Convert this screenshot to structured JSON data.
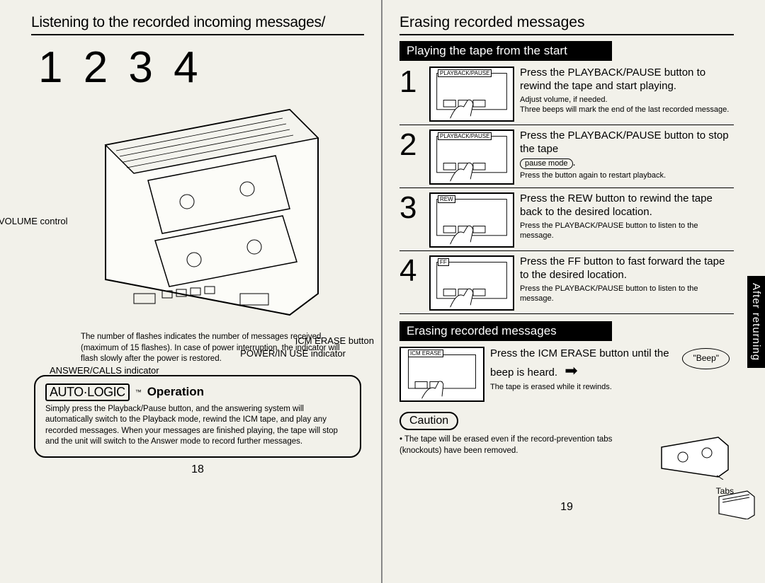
{
  "left": {
    "title": "Listening to the recorded incoming messages/",
    "bigNumbers": "1 2 3 4",
    "callouts": {
      "volume": "VOLUME control",
      "icmErase": "ICM ERASE button",
      "powerInUse": "POWER/IN USE indicator",
      "answerCalls": "ANSWER/CALLS indicator"
    },
    "answerDesc": "The number of flashes indicates the number of messages received (maximum of 15 flashes).\nIn case of power interruption, the indicator will flash slowly after the power is restored.",
    "autologic": {
      "logo": "AUTO·LOGIC",
      "tm": "™",
      "op": "Operation",
      "body": "Simply press the Playback/Pause button, and the answering system will automatically switch to the Playback mode, rewind the ICM tape, and play any recorded messages. When your messages are finished playing, the tape will stop and the unit will switch to the Answer mode to record further messages."
    },
    "pageNum": "18"
  },
  "right": {
    "title": "Erasing recorded messages",
    "section1": "Playing the tape from the start",
    "steps": [
      {
        "n": "1",
        "label": "PLAYBACK/PAUSE",
        "main": "Press the PLAYBACK/PAUSE button to rewind the tape and start playing.",
        "sub": "Adjust volume, if needed.\nThree beeps will mark the end of the last recorded message."
      },
      {
        "n": "2",
        "label": "PLAYBACK/PAUSE",
        "main": "Press the PLAYBACK/PAUSE button to stop the tape",
        "pause": "pause mode",
        "sub": "Press the button again to restart playback."
      },
      {
        "n": "3",
        "label": "REW",
        "main": "Press the REW button to rewind the tape back to the desired location.",
        "sub": "Press the PLAYBACK/PAUSE button to listen to the message."
      },
      {
        "n": "4",
        "label": "FF",
        "main": "Press the FF button to fast forward the tape to the desired location.",
        "sub": "Press the PLAYBACK/PAUSE button to listen to the message."
      }
    ],
    "section2": "Erasing recorded messages",
    "erase": {
      "label": "ICM ERASE",
      "main": "Press the ICM ERASE button until the beep is heard.",
      "beep": "\"Beep\"",
      "sub": "The tape is erased while it rewinds."
    },
    "caution": {
      "label": "Caution",
      "body": "• The tape will be erased even if the record-prevention tabs (knockouts) have been removed."
    },
    "tabsLabel": "Tabs",
    "sideTab": "After returning",
    "pageNum": "19"
  },
  "colors": {
    "bg": "#f0efe8",
    "ink": "#000000",
    "headerBg": "#000000",
    "headerFg": "#ffffff"
  }
}
